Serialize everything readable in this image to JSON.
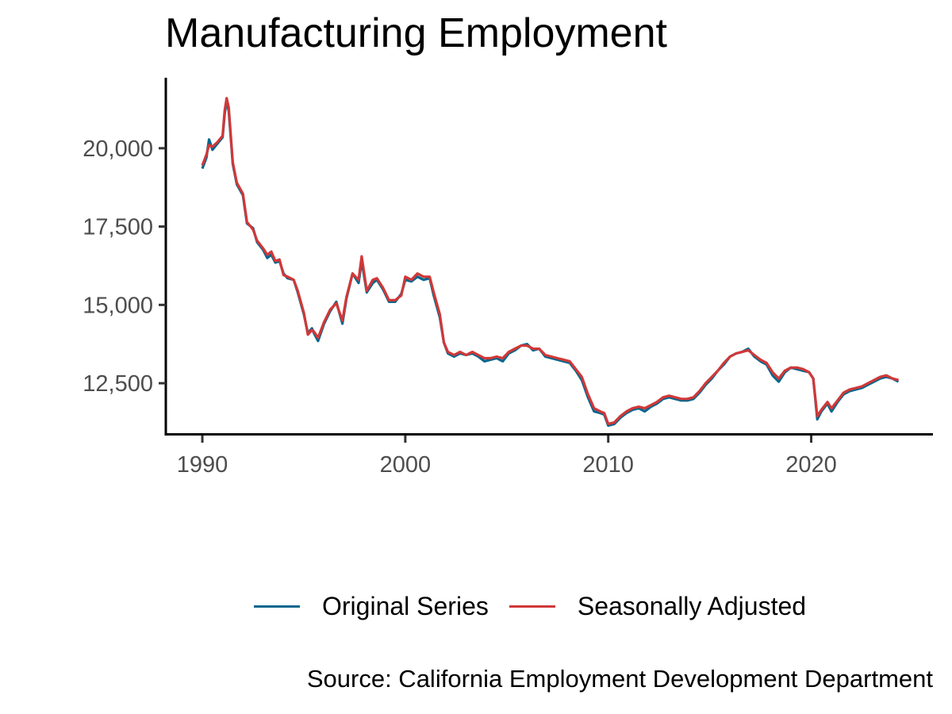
{
  "chart_data": {
    "type": "line",
    "title": "Manufacturing Employment",
    "xlabel": "",
    "ylabel": "",
    "caption": "Source: California Employment Development Department",
    "xlim": [
      1988.2,
      2026.0
    ],
    "ylim": [
      10830,
      22250
    ],
    "x_ticks": [
      1990,
      2000,
      2010,
      2020
    ],
    "x_tick_labels": [
      "1990",
      "2000",
      "2010",
      "2020"
    ],
    "y_ticks": [
      12500,
      15000,
      17500,
      20000
    ],
    "y_tick_labels": [
      "12,500",
      "15,000",
      "17,500",
      "20,000"
    ],
    "grid": false,
    "legend_position": "bottom",
    "colors": {
      "original": "#05668d",
      "adjusted": "#d13838"
    },
    "series": [
      {
        "name": "Original Series",
        "color": "#05668d",
        "x": [
          1990.0,
          1990.2,
          1990.33,
          1990.5,
          1990.75,
          1991.0,
          1991.1,
          1991.2,
          1991.3,
          1991.5,
          1991.7,
          1992.0,
          1992.2,
          1992.5,
          1992.7,
          1993.0,
          1993.2,
          1993.4,
          1993.6,
          1993.8,
          1994.0,
          1994.2,
          1994.5,
          1994.7,
          1995.0,
          1995.2,
          1995.4,
          1995.5,
          1995.7,
          1996.0,
          1996.3,
          1996.6,
          1996.9,
          1997.1,
          1997.4,
          1997.7,
          1997.85,
          1998.1,
          1998.4,
          1998.6,
          1998.9,
          1999.2,
          1999.5,
          1999.8,
          2000.0,
          2000.3,
          2000.6,
          2000.9,
          2001.2,
          2001.4,
          2001.7,
          2001.9,
          2002.1,
          2002.4,
          2002.7,
          2003.0,
          2003.3,
          2003.6,
          2003.9,
          2004.2,
          2004.5,
          2004.8,
          2005.1,
          2005.4,
          2005.7,
          2006.0,
          2006.3,
          2006.6,
          2006.9,
          2007.2,
          2007.5,
          2007.8,
          2008.1,
          2008.4,
          2008.7,
          2009.0,
          2009.3,
          2009.6,
          2009.8,
          2010.0,
          2010.3,
          2010.6,
          2010.9,
          2011.2,
          2011.5,
          2011.8,
          2012.1,
          2012.4,
          2012.7,
          2013.0,
          2013.3,
          2013.6,
          2013.9,
          2014.2,
          2014.5,
          2014.8,
          2015.1,
          2015.4,
          2015.7,
          2016.0,
          2016.3,
          2016.6,
          2016.9,
          2017.2,
          2017.5,
          2017.8,
          2018.1,
          2018.4,
          2018.7,
          2019.0,
          2019.3,
          2019.6,
          2019.9,
          2020.1,
          2020.3,
          2020.5,
          2020.8,
          2021.0,
          2021.3,
          2021.6,
          2021.9,
          2022.2,
          2022.5,
          2022.8,
          2023.1,
          2023.4,
          2023.7,
          2024.0,
          2024.3
        ],
        "values": [
          19350,
          19700,
          20280,
          19950,
          20150,
          20350,
          21100,
          21500,
          21200,
          19500,
          18850,
          18500,
          17600,
          17450,
          17000,
          16750,
          16500,
          16600,
          16350,
          16400,
          16000,
          15850,
          15800,
          15400,
          14700,
          14100,
          14250,
          14100,
          13850,
          14400,
          14800,
          15100,
          14400,
          15200,
          16000,
          15700,
          16400,
          15400,
          15700,
          15800,
          15500,
          15100,
          15100,
          15350,
          15800,
          15750,
          15900,
          15800,
          15850,
          15300,
          14600,
          13800,
          13450,
          13350,
          13450,
          13400,
          13450,
          13350,
          13200,
          13250,
          13300,
          13200,
          13450,
          13550,
          13700,
          13750,
          13550,
          13600,
          13350,
          13300,
          13250,
          13200,
          13150,
          12900,
          12600,
          12050,
          11600,
          11550,
          11500,
          11150,
          11200,
          11400,
          11550,
          11650,
          11700,
          11600,
          11750,
          11850,
          12000,
          12050,
          12000,
          11950,
          11950,
          12000,
          12200,
          12450,
          12650,
          12900,
          13100,
          13350,
          13450,
          13500,
          13600,
          13350,
          13200,
          13100,
          12750,
          12550,
          12850,
          13000,
          12950,
          12900,
          12850,
          12650,
          11350,
          11600,
          11850,
          11600,
          11900,
          12150,
          12250,
          12300,
          12350,
          12450,
          12550,
          12650,
          12700,
          12650,
          12550
        ]
      },
      {
        "name": "Seasonally Adjusted",
        "color": "#d13838",
        "x": [
          1990.0,
          1990.2,
          1990.33,
          1990.5,
          1990.75,
          1991.0,
          1991.1,
          1991.2,
          1991.3,
          1991.5,
          1991.7,
          1992.0,
          1992.2,
          1992.5,
          1992.7,
          1993.0,
          1993.2,
          1993.4,
          1993.6,
          1993.8,
          1994.0,
          1994.2,
          1994.5,
          1994.7,
          1995.0,
          1995.2,
          1995.4,
          1995.5,
          1995.7,
          1996.0,
          1996.3,
          1996.6,
          1996.9,
          1997.1,
          1997.4,
          1997.7,
          1997.85,
          1998.1,
          1998.4,
          1998.6,
          1998.9,
          1999.2,
          1999.5,
          1999.8,
          2000.0,
          2000.3,
          2000.6,
          2000.9,
          2001.2,
          2001.4,
          2001.7,
          2001.9,
          2002.1,
          2002.4,
          2002.7,
          2003.0,
          2003.3,
          2003.6,
          2003.9,
          2004.2,
          2004.5,
          2004.8,
          2005.1,
          2005.4,
          2005.7,
          2006.0,
          2006.3,
          2006.6,
          2006.9,
          2007.2,
          2007.5,
          2007.8,
          2008.1,
          2008.4,
          2008.7,
          2009.0,
          2009.3,
          2009.6,
          2009.8,
          2010.0,
          2010.3,
          2010.6,
          2010.9,
          2011.2,
          2011.5,
          2011.8,
          2012.1,
          2012.4,
          2012.7,
          2013.0,
          2013.3,
          2013.6,
          2013.9,
          2014.2,
          2014.5,
          2014.8,
          2015.1,
          2015.4,
          2015.7,
          2016.0,
          2016.3,
          2016.6,
          2016.9,
          2017.2,
          2017.5,
          2017.8,
          2018.1,
          2018.4,
          2018.7,
          2019.0,
          2019.3,
          2019.6,
          2019.9,
          2020.1,
          2020.3,
          2020.5,
          2020.8,
          2021.0,
          2021.3,
          2021.6,
          2021.9,
          2022.2,
          2022.5,
          2022.8,
          2023.1,
          2023.4,
          2023.7,
          2024.0,
          2024.3
        ],
        "values": [
          19450,
          19800,
          20100,
          20050,
          20200,
          20400,
          21200,
          21600,
          21300,
          19550,
          18900,
          18550,
          17650,
          17400,
          17050,
          16800,
          16600,
          16700,
          16400,
          16450,
          15950,
          15900,
          15800,
          15450,
          14750,
          14050,
          14200,
          14150,
          13950,
          14450,
          14850,
          15050,
          14500,
          15250,
          16000,
          15800,
          16550,
          15450,
          15800,
          15850,
          15550,
          15150,
          15150,
          15300,
          15900,
          15800,
          16000,
          15900,
          15900,
          15400,
          14700,
          13800,
          13500,
          13400,
          13500,
          13400,
          13500,
          13400,
          13300,
          13300,
          13350,
          13300,
          13500,
          13600,
          13700,
          13700,
          13600,
          13600,
          13400,
          13350,
          13300,
          13250,
          13200,
          12950,
          12700,
          12150,
          11700,
          11600,
          11550,
          11200,
          11250,
          11450,
          11600,
          11700,
          11750,
          11700,
          11800,
          11900,
          12050,
          12100,
          12050,
          12000,
          12000,
          12050,
          12250,
          12500,
          12700,
          12900,
          13150,
          13350,
          13450,
          13500,
          13550,
          13400,
          13250,
          13150,
          12850,
          12650,
          12900,
          13000,
          13000,
          12950,
          12850,
          12650,
          11450,
          11650,
          11900,
          11700,
          11950,
          12200,
          12300,
          12350,
          12400,
          12500,
          12600,
          12700,
          12750,
          12650,
          12600
        ]
      }
    ]
  }
}
